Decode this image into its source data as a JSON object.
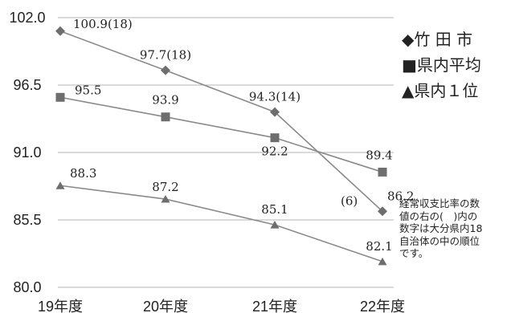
{
  "chart_data": {
    "type": "line",
    "categories": [
      "19年度",
      "20年度",
      "21年度",
      "22年度"
    ],
    "ylim": [
      80.0,
      102.0
    ],
    "yticks": [
      "102.0",
      "96.5",
      "91.0",
      "85.5",
      "80.0"
    ],
    "ytick_values": [
      102.0,
      96.5,
      91.0,
      85.5,
      80.0
    ],
    "grid": true,
    "legend_position": "top-right",
    "series": [
      {
        "name": "竹田市",
        "legend_label": "◆竹 田 市",
        "marker": "diamond",
        "values": [
          100.9,
          97.7,
          94.3,
          86.2
        ],
        "labels": [
          "100.9(18)",
          "97.7(18)",
          "94.3(14)",
          "86.2"
        ],
        "extra_label": "(6)"
      },
      {
        "name": "県内平均",
        "legend_label": "■県内平均",
        "marker": "square",
        "values": [
          95.5,
          93.9,
          92.2,
          89.4
        ],
        "labels": [
          "95.5",
          "93.9",
          "92.2",
          "89.4"
        ]
      },
      {
        "name": "県内1位",
        "legend_label": "▲県内１位",
        "marker": "triangle",
        "values": [
          88.3,
          87.2,
          85.1,
          82.1
        ],
        "labels": [
          "88.3",
          "87.2",
          "85.1",
          "82.1"
        ]
      }
    ],
    "annotation": "経常収支比率の数\n値の右の(　)内の\n数字は大分県内18\n自治体の中の順位\nです。"
  },
  "colors": {
    "line": "#8a8a8a",
    "marker": "#6e6e6e",
    "grid": "#b5b5b5"
  }
}
